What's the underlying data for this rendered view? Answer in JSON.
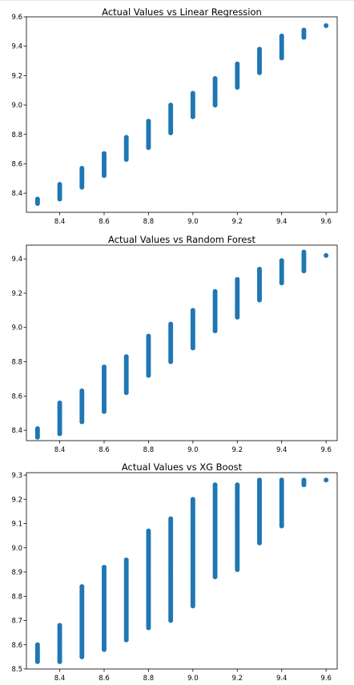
{
  "chart_data": [
    {
      "type": "scatter",
      "title": "Actual Values vs Linear Regression",
      "xlabel": "",
      "ylabel": "",
      "xlim": [
        8.25,
        9.65
      ],
      "ylim": [
        8.27,
        9.6
      ],
      "xticks": [
        8.4,
        8.6,
        8.8,
        9.0,
        9.2,
        9.4,
        9.6
      ],
      "yticks": [
        8.4,
        8.6,
        8.8,
        9.0,
        9.2,
        9.4,
        9.6
      ],
      "point_color": "#1f77b4",
      "grid": false,
      "groups": [
        {
          "x": 8.3,
          "y_min": 8.33,
          "y_max": 8.36
        },
        {
          "x": 8.4,
          "y_min": 8.36,
          "y_max": 8.46
        },
        {
          "x": 8.5,
          "y_min": 8.44,
          "y_max": 8.57
        },
        {
          "x": 8.6,
          "y_min": 8.52,
          "y_max": 8.67
        },
        {
          "x": 8.7,
          "y_min": 8.63,
          "y_max": 8.78
        },
        {
          "x": 8.8,
          "y_min": 8.71,
          "y_max": 8.89
        },
        {
          "x": 8.9,
          "y_min": 8.81,
          "y_max": 9.0
        },
        {
          "x": 9.0,
          "y_min": 8.92,
          "y_max": 9.08
        },
        {
          "x": 9.1,
          "y_min": 9.0,
          "y_max": 9.18
        },
        {
          "x": 9.2,
          "y_min": 9.12,
          "y_max": 9.28
        },
        {
          "x": 9.3,
          "y_min": 9.22,
          "y_max": 9.38
        },
        {
          "x": 9.4,
          "y_min": 9.32,
          "y_max": 9.47
        },
        {
          "x": 9.5,
          "y_min": 9.46,
          "y_max": 9.51
        },
        {
          "x": 9.6,
          "y_min": 9.54,
          "y_max": 9.54
        }
      ]
    },
    {
      "type": "scatter",
      "title": "Actual Values vs Random Forest",
      "xlabel": "",
      "ylabel": "",
      "xlim": [
        8.25,
        9.65
      ],
      "ylim": [
        8.34,
        9.48
      ],
      "xticks": [
        8.4,
        8.6,
        8.8,
        9.0,
        9.2,
        9.4,
        9.6
      ],
      "yticks": [
        8.4,
        8.6,
        8.8,
        9.0,
        9.2,
        9.4
      ],
      "point_color": "#1f77b4",
      "grid": false,
      "groups": [
        {
          "x": 8.3,
          "y_min": 8.36,
          "y_max": 8.41
        },
        {
          "x": 8.4,
          "y_min": 8.38,
          "y_max": 8.56
        },
        {
          "x": 8.5,
          "y_min": 8.45,
          "y_max": 8.63
        },
        {
          "x": 8.6,
          "y_min": 8.51,
          "y_max": 8.77
        },
        {
          "x": 8.7,
          "y_min": 8.62,
          "y_max": 8.83
        },
        {
          "x": 8.8,
          "y_min": 8.72,
          "y_max": 8.95
        },
        {
          "x": 8.9,
          "y_min": 8.8,
          "y_max": 9.02
        },
        {
          "x": 9.0,
          "y_min": 8.88,
          "y_max": 9.1
        },
        {
          "x": 9.1,
          "y_min": 8.98,
          "y_max": 9.21
        },
        {
          "x": 9.2,
          "y_min": 9.06,
          "y_max": 9.28
        },
        {
          "x": 9.3,
          "y_min": 9.16,
          "y_max": 9.34
        },
        {
          "x": 9.4,
          "y_min": 9.26,
          "y_max": 9.39
        },
        {
          "x": 9.5,
          "y_min": 9.33,
          "y_max": 9.44
        },
        {
          "x": 9.6,
          "y_min": 9.42,
          "y_max": 9.42
        }
      ]
    },
    {
      "type": "scatter",
      "title": "Actual Values vs XG Boost",
      "xlabel": "",
      "ylabel": "",
      "xlim": [
        8.25,
        9.65
      ],
      "ylim": [
        8.5,
        9.31
      ],
      "xticks": [
        8.4,
        8.6,
        8.8,
        9.0,
        9.2,
        9.4,
        9.6
      ],
      "yticks": [
        8.5,
        8.6,
        8.7,
        8.8,
        8.9,
        9.0,
        9.1,
        9.2,
        9.3
      ],
      "point_color": "#1f77b4",
      "grid": false,
      "groups": [
        {
          "x": 8.3,
          "y_min": 8.53,
          "y_max": 8.6
        },
        {
          "x": 8.4,
          "y_min": 8.53,
          "y_max": 8.68
        },
        {
          "x": 8.5,
          "y_min": 8.55,
          "y_max": 8.84
        },
        {
          "x": 8.6,
          "y_min": 8.58,
          "y_max": 8.92
        },
        {
          "x": 8.7,
          "y_min": 8.62,
          "y_max": 8.95
        },
        {
          "x": 8.8,
          "y_min": 8.67,
          "y_max": 9.07
        },
        {
          "x": 8.9,
          "y_min": 8.7,
          "y_max": 9.12
        },
        {
          "x": 9.0,
          "y_min": 8.76,
          "y_max": 9.2
        },
        {
          "x": 9.1,
          "y_min": 8.88,
          "y_max": 9.26
        },
        {
          "x": 9.2,
          "y_min": 8.91,
          "y_max": 9.26
        },
        {
          "x": 9.3,
          "y_min": 9.02,
          "y_max": 9.28
        },
        {
          "x": 9.4,
          "y_min": 9.09,
          "y_max": 9.28
        },
        {
          "x": 9.5,
          "y_min": 9.26,
          "y_max": 9.28
        },
        {
          "x": 9.6,
          "y_min": 9.28,
          "y_max": 9.28
        }
      ]
    }
  ]
}
